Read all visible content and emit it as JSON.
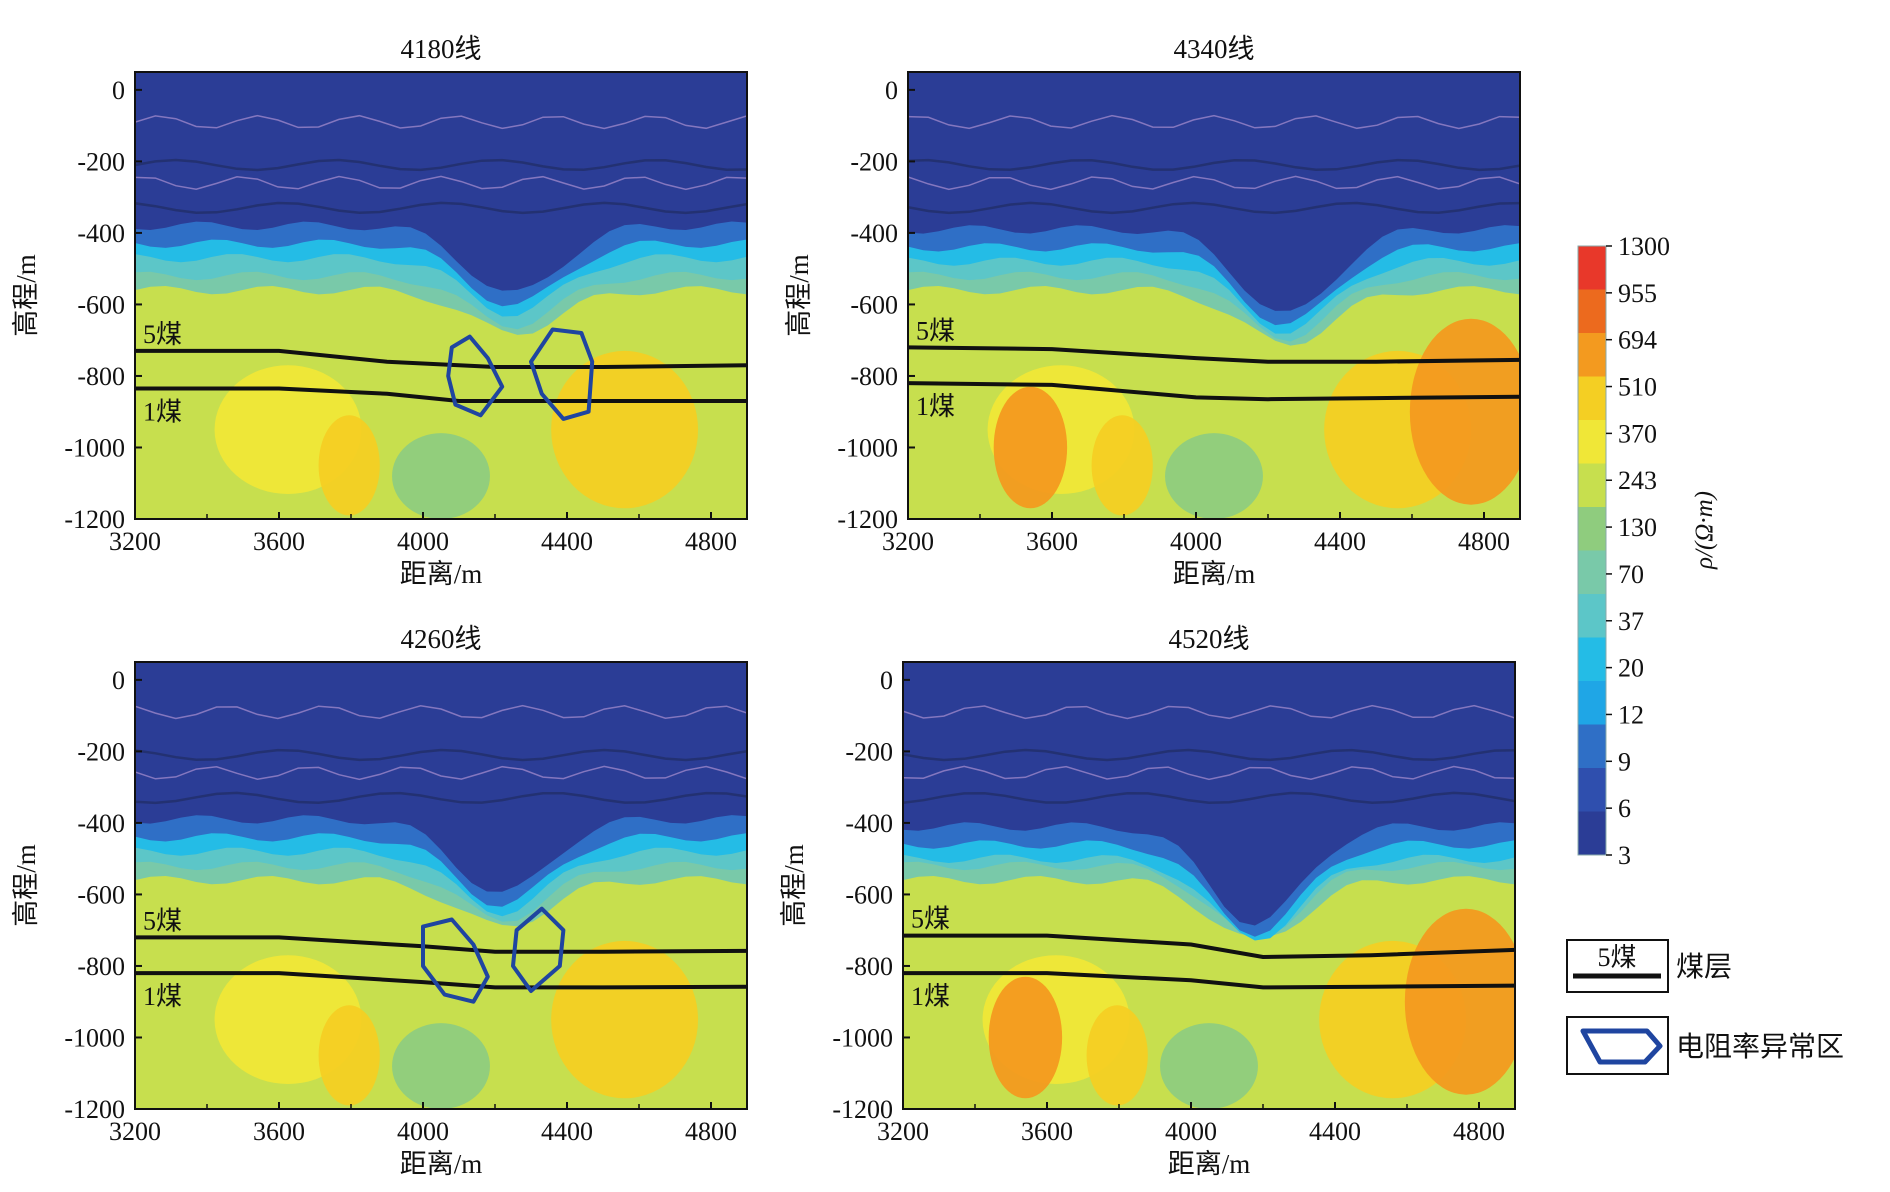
{
  "colors": {
    "palette": [
      "#2b3d96",
      "#2f4fae",
      "#2f6fc6",
      "#1fa6e6",
      "#24bce6",
      "#5cc6c8",
      "#79c9a9",
      "#8fcc7e",
      "#c7df4e",
      "#f0e737",
      "#f4cf23",
      "#f39a1f",
      "#ec6a1e",
      "#e8382a"
    ],
    "coal_line": "#111111",
    "anomaly": "#1f45a0",
    "contour_light": "#9b86c9"
  },
  "chart_data": [
    {
      "type": "heatmap",
      "title": "4180线",
      "xlabel": "距离/m",
      "ylabel": "高程/m",
      "xlim": [
        3200,
        4900
      ],
      "ylim": [
        -1200,
        50
      ],
      "xticks": [
        "3200",
        "3600",
        "4000",
        "4400",
        "4800"
      ],
      "yticks": [
        "0",
        "-200",
        "-400",
        "-600",
        "-800",
        "-1000",
        "-1200"
      ],
      "seam_labels": [
        "5煤",
        "1煤"
      ],
      "seam5": [
        [
          3200,
          -730
        ],
        [
          3600,
          -730
        ],
        [
          3900,
          -760
        ],
        [
          4200,
          -775
        ],
        [
          4500,
          -775
        ],
        [
          4900,
          -770
        ]
      ],
      "seam1": [
        [
          3200,
          -835
        ],
        [
          3600,
          -835
        ],
        [
          3900,
          -850
        ],
        [
          4100,
          -870
        ],
        [
          4500,
          -870
        ],
        [
          4900,
          -870
        ]
      ],
      "dip_x": 4250,
      "dip_depth": 120,
      "blue_top": -470,
      "anomalies": [
        [
          [
            4080,
            -720
          ],
          [
            4130,
            -690
          ],
          [
            4180,
            -750
          ],
          [
            4220,
            -830
          ],
          [
            4160,
            -910
          ],
          [
            4090,
            -880
          ],
          [
            4070,
            -800
          ]
        ],
        [
          [
            4300,
            -760
          ],
          [
            4360,
            -670
          ],
          [
            4440,
            -680
          ],
          [
            4470,
            -760
          ],
          [
            4460,
            -900
          ],
          [
            4390,
            -920
          ],
          [
            4330,
            -850
          ]
        ]
      ]
    },
    {
      "type": "heatmap",
      "title": "4340线",
      "xlabel": "距离/m",
      "ylabel": "高程/m",
      "xlim": [
        3200,
        4900
      ],
      "ylim": [
        -1200,
        50
      ],
      "xticks": [
        "3200",
        "3600",
        "4000",
        "4400",
        "4800"
      ],
      "yticks": [
        "0",
        "-200",
        "-400",
        "-600",
        "-800",
        "-1000",
        "-1200"
      ],
      "seam_labels": [
        "5煤",
        "1煤"
      ],
      "seam5": [
        [
          3200,
          -720
        ],
        [
          3600,
          -725
        ],
        [
          4000,
          -750
        ],
        [
          4200,
          -760
        ],
        [
          4500,
          -760
        ],
        [
          4900,
          -755
        ]
      ],
      "seam1": [
        [
          3200,
          -820
        ],
        [
          3600,
          -825
        ],
        [
          4000,
          -860
        ],
        [
          4200,
          -865
        ],
        [
          4500,
          -862
        ],
        [
          4900,
          -858
        ]
      ],
      "dip_x": 4250,
      "dip_depth": 150,
      "blue_top": -480,
      "anomalies": []
    },
    {
      "type": "heatmap",
      "title": "4260线",
      "xlabel": "距离/m",
      "ylabel": "高程/m",
      "xlim": [
        3200,
        4900
      ],
      "ylim": [
        -1200,
        50
      ],
      "xticks": [
        "3200",
        "3600",
        "4000",
        "4400",
        "4800"
      ],
      "yticks": [
        "0",
        "-200",
        "-400",
        "-600",
        "-800",
        "-1000",
        "-1200"
      ],
      "seam_labels": [
        "5煤",
        "1煤"
      ],
      "seam5": [
        [
          3200,
          -720
        ],
        [
          3600,
          -720
        ],
        [
          4000,
          -745
        ],
        [
          4200,
          -760
        ],
        [
          4500,
          -760
        ],
        [
          4900,
          -758
        ]
      ],
      "seam1": [
        [
          3200,
          -820
        ],
        [
          3600,
          -820
        ],
        [
          4000,
          -845
        ],
        [
          4200,
          -860
        ],
        [
          4500,
          -860
        ],
        [
          4900,
          -858
        ]
      ],
      "dip_x": 4220,
      "dip_depth": 130,
      "blue_top": -480,
      "anomalies": [
        [
          [
            4000,
            -690
          ],
          [
            4080,
            -670
          ],
          [
            4140,
            -740
          ],
          [
            4180,
            -830
          ],
          [
            4140,
            -900
          ],
          [
            4060,
            -880
          ],
          [
            4000,
            -800
          ]
        ],
        [
          [
            4260,
            -700
          ],
          [
            4330,
            -640
          ],
          [
            4390,
            -700
          ],
          [
            4380,
            -800
          ],
          [
            4300,
            -870
          ],
          [
            4250,
            -800
          ]
        ]
      ]
    },
    {
      "type": "heatmap",
      "title": "4520线",
      "xlabel": "距离/m",
      "ylabel": "高程/m",
      "xlim": [
        3200,
        4900
      ],
      "ylim": [
        -1200,
        50
      ],
      "xticks": [
        "3200",
        "3600",
        "4000",
        "4400",
        "4800"
      ],
      "yticks": [
        "0",
        "-200",
        "-400",
        "-600",
        "-800",
        "-1000",
        "-1200"
      ],
      "seam_labels": [
        "5煤",
        "1煤"
      ],
      "seam5": [
        [
          3200,
          -715
        ],
        [
          3600,
          -715
        ],
        [
          4000,
          -740
        ],
        [
          4200,
          -775
        ],
        [
          4500,
          -770
        ],
        [
          4900,
          -755
        ]
      ],
      "seam1": [
        [
          3200,
          -820
        ],
        [
          3600,
          -820
        ],
        [
          4000,
          -840
        ],
        [
          4200,
          -860
        ],
        [
          4500,
          -858
        ],
        [
          4900,
          -855
        ]
      ],
      "dip_x": 4180,
      "dip_depth": 170,
      "blue_top": -500,
      "anomalies": []
    }
  ],
  "colorbar": {
    "label": "ρ/(Ω·m)",
    "ticks": [
      "1300",
      "955",
      "694",
      "510",
      "370",
      "243",
      "130",
      "70",
      "37",
      "20",
      "12",
      "9",
      "6",
      "3"
    ]
  },
  "legend": {
    "coal_sample": "5煤",
    "coal_label": "煤层",
    "anomaly_label": "电阻率异常区"
  }
}
